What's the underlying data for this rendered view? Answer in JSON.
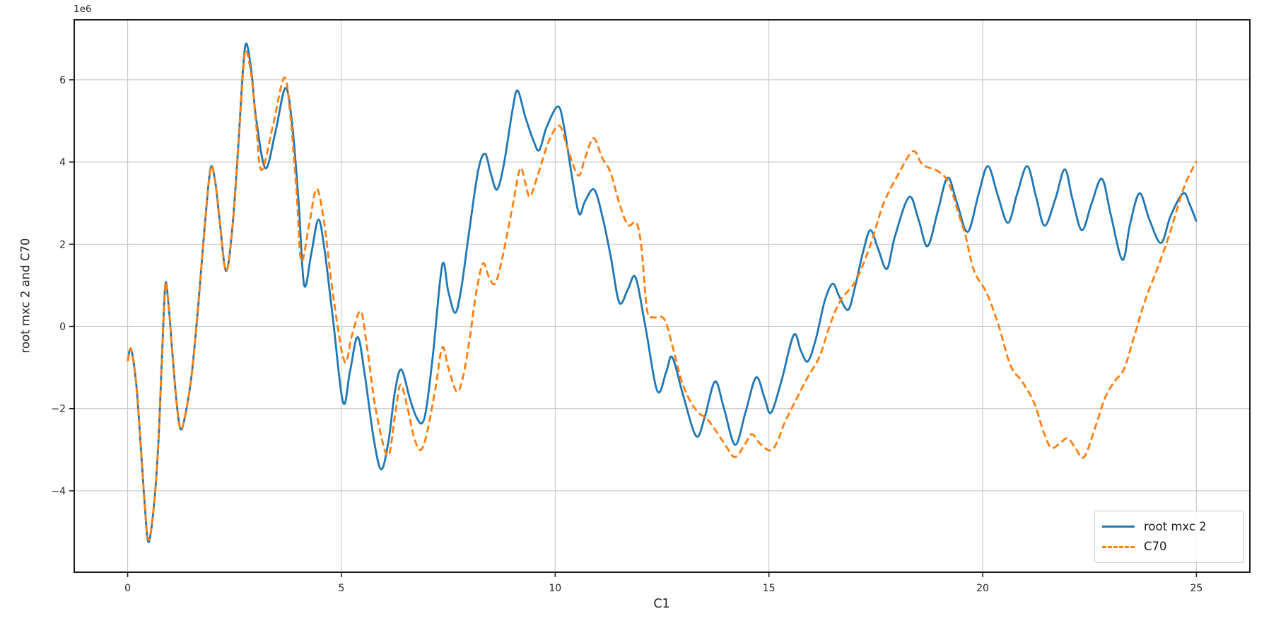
{
  "chart_data": {
    "type": "line",
    "xlabel": "C1",
    "ylabel": "root mxc 2 and C70",
    "y_offset_label": "1e6",
    "y_unit_multiplier": 1000000,
    "xlim": [
      -1.25,
      26.25
    ],
    "ylim": [
      -5.98,
      7.46
    ],
    "xticks": [
      0,
      5,
      10,
      15,
      20,
      25
    ],
    "xtick_labels": [
      "0",
      "5",
      "10",
      "15",
      "20",
      "25"
    ],
    "yticks": [
      -4,
      -2,
      0,
      2,
      4,
      6
    ],
    "ytick_labels": [
      "−4",
      "−2",
      "0",
      "2",
      "4",
      "6"
    ],
    "grid": true,
    "legend_position": "lower right",
    "series": [
      {
        "name": "root mxc 2",
        "color": "#1f77b4",
        "style": "solid",
        "points": [
          [
            0,
            -0.85
          ],
          [
            0.08,
            -0.55
          ],
          [
            0.2,
            -1.4
          ],
          [
            0.3,
            -2.8
          ],
          [
            0.4,
            -4.35
          ],
          [
            0.49,
            -5.25
          ],
          [
            0.62,
            -4.3
          ],
          [
            0.72,
            -2.8
          ],
          [
            0.8,
            -0.8
          ],
          [
            0.88,
            1.0
          ],
          [
            0.95,
            0.6
          ],
          [
            1.05,
            -0.7
          ],
          [
            1.15,
            -1.9
          ],
          [
            1.24,
            -2.5
          ],
          [
            1.35,
            -2.15
          ],
          [
            1.5,
            -1.15
          ],
          [
            1.65,
            0.5
          ],
          [
            1.8,
            2.4
          ],
          [
            1.94,
            3.85
          ],
          [
            2.05,
            3.5
          ],
          [
            2.15,
            2.6
          ],
          [
            2.3,
            1.35
          ],
          [
            2.45,
            2.4
          ],
          [
            2.6,
            4.6
          ],
          [
            2.7,
            6.3
          ],
          [
            2.78,
            6.88
          ],
          [
            2.9,
            6.15
          ],
          [
            3.0,
            5.1
          ],
          [
            3.22,
            3.85
          ],
          [
            3.45,
            4.7
          ],
          [
            3.69,
            5.8
          ],
          [
            3.85,
            4.9
          ],
          [
            4.0,
            3.0
          ],
          [
            4.13,
            1.0
          ],
          [
            4.3,
            1.8
          ],
          [
            4.46,
            2.6
          ],
          [
            4.6,
            1.9
          ],
          [
            4.8,
            0.2
          ],
          [
            5.04,
            -1.85
          ],
          [
            5.2,
            -1.1
          ],
          [
            5.38,
            -0.26
          ],
          [
            5.55,
            -1.2
          ],
          [
            5.75,
            -2.7
          ],
          [
            5.93,
            -3.48
          ],
          [
            6.1,
            -2.8
          ],
          [
            6.25,
            -1.6
          ],
          [
            6.4,
            -1.05
          ],
          [
            6.6,
            -1.75
          ],
          [
            6.75,
            -2.2
          ],
          [
            6.89,
            -2.35
          ],
          [
            7.0,
            -1.9
          ],
          [
            7.15,
            -0.6
          ],
          [
            7.36,
            1.5
          ],
          [
            7.5,
            0.85
          ],
          [
            7.66,
            0.33
          ],
          [
            7.8,
            0.9
          ],
          [
            8.0,
            2.4
          ],
          [
            8.2,
            3.8
          ],
          [
            8.36,
            4.2
          ],
          [
            8.5,
            3.7
          ],
          [
            8.64,
            3.33
          ],
          [
            8.8,
            3.95
          ],
          [
            9.0,
            5.25
          ],
          [
            9.12,
            5.74
          ],
          [
            9.3,
            5.1
          ],
          [
            9.5,
            4.5
          ],
          [
            9.63,
            4.29
          ],
          [
            9.8,
            4.85
          ],
          [
            10.06,
            5.35
          ],
          [
            10.2,
            4.9
          ],
          [
            10.4,
            3.6
          ],
          [
            10.56,
            2.74
          ],
          [
            10.7,
            3.05
          ],
          [
            10.91,
            3.33
          ],
          [
            11.1,
            2.7
          ],
          [
            11.3,
            1.7
          ],
          [
            11.5,
            0.58
          ],
          [
            11.7,
            0.9
          ],
          [
            11.88,
            1.19
          ],
          [
            12.11,
            0.0
          ],
          [
            12.39,
            -1.57
          ],
          [
            12.6,
            -1.1
          ],
          [
            12.74,
            -0.75
          ],
          [
            13.0,
            -1.7
          ],
          [
            13.3,
            -2.67
          ],
          [
            13.5,
            -2.2
          ],
          [
            13.74,
            -1.34
          ],
          [
            13.95,
            -2.0
          ],
          [
            14.21,
            -2.88
          ],
          [
            14.45,
            -2.1
          ],
          [
            14.7,
            -1.24
          ],
          [
            14.9,
            -1.75
          ],
          [
            15.05,
            -2.1
          ],
          [
            15.3,
            -1.3
          ],
          [
            15.58,
            -0.21
          ],
          [
            15.75,
            -0.6
          ],
          [
            15.91,
            -0.85
          ],
          [
            16.1,
            -0.3
          ],
          [
            16.3,
            0.6
          ],
          [
            16.49,
            1.04
          ],
          [
            16.65,
            0.72
          ],
          [
            16.85,
            0.4
          ],
          [
            17.0,
            0.9
          ],
          [
            17.2,
            1.8
          ],
          [
            17.37,
            2.34
          ],
          [
            17.55,
            1.9
          ],
          [
            17.76,
            1.4
          ],
          [
            17.95,
            2.2
          ],
          [
            18.28,
            3.15
          ],
          [
            18.5,
            2.6
          ],
          [
            18.71,
            1.95
          ],
          [
            18.95,
            2.8
          ],
          [
            19.18,
            3.62
          ],
          [
            19.4,
            3.0
          ],
          [
            19.65,
            2.3
          ],
          [
            19.9,
            3.2
          ],
          [
            20.12,
            3.9
          ],
          [
            20.35,
            3.2
          ],
          [
            20.59,
            2.52
          ],
          [
            20.8,
            3.2
          ],
          [
            21.04,
            3.9
          ],
          [
            21.25,
            3.15
          ],
          [
            21.45,
            2.45
          ],
          [
            21.7,
            3.1
          ],
          [
            21.92,
            3.82
          ],
          [
            22.1,
            3.1
          ],
          [
            22.32,
            2.34
          ],
          [
            22.55,
            3.0
          ],
          [
            22.79,
            3.59
          ],
          [
            23.0,
            2.7
          ],
          [
            23.27,
            1.62
          ],
          [
            23.45,
            2.5
          ],
          [
            23.67,
            3.24
          ],
          [
            23.9,
            2.6
          ],
          [
            24.17,
            2.03
          ],
          [
            24.4,
            2.7
          ],
          [
            24.69,
            3.24
          ],
          [
            24.85,
            2.95
          ],
          [
            25.0,
            2.55
          ]
        ]
      },
      {
        "name": "C70",
        "color": "#ff7f0e",
        "style": "dashed",
        "points": [
          [
            0,
            -0.85
          ],
          [
            0.08,
            -0.55
          ],
          [
            0.2,
            -1.4
          ],
          [
            0.3,
            -2.8
          ],
          [
            0.4,
            -4.35
          ],
          [
            0.49,
            -5.2
          ],
          [
            0.62,
            -4.3
          ],
          [
            0.72,
            -2.8
          ],
          [
            0.8,
            -0.8
          ],
          [
            0.88,
            1.0
          ],
          [
            0.95,
            0.6
          ],
          [
            1.05,
            -0.7
          ],
          [
            1.15,
            -1.9
          ],
          [
            1.24,
            -2.5
          ],
          [
            1.35,
            -2.15
          ],
          [
            1.5,
            -1.15
          ],
          [
            1.65,
            0.5
          ],
          [
            1.8,
            2.4
          ],
          [
            1.94,
            3.85
          ],
          [
            2.05,
            3.5
          ],
          [
            2.15,
            2.6
          ],
          [
            2.3,
            1.35
          ],
          [
            2.45,
            2.4
          ],
          [
            2.6,
            4.55
          ],
          [
            2.7,
            6.2
          ],
          [
            2.77,
            6.72
          ],
          [
            2.9,
            6.05
          ],
          [
            3.0,
            5.0
          ],
          [
            3.13,
            3.8
          ],
          [
            3.4,
            4.9
          ],
          [
            3.66,
            6.05
          ],
          [
            3.8,
            5.2
          ],
          [
            3.95,
            3.3
          ],
          [
            4.06,
            1.6
          ],
          [
            4.25,
            2.5
          ],
          [
            4.42,
            3.35
          ],
          [
            4.6,
            2.5
          ],
          [
            4.8,
            0.8
          ],
          [
            5.07,
            -0.85
          ],
          [
            5.25,
            -0.2
          ],
          [
            5.45,
            0.37
          ],
          [
            5.6,
            -0.5
          ],
          [
            5.8,
            -2.0
          ],
          [
            6.08,
            -3.15
          ],
          [
            6.25,
            -2.2
          ],
          [
            6.38,
            -1.42
          ],
          [
            6.55,
            -2.0
          ],
          [
            6.7,
            -2.7
          ],
          [
            6.85,
            -3.01
          ],
          [
            7.0,
            -2.6
          ],
          [
            7.2,
            -1.5
          ],
          [
            7.36,
            -0.51
          ],
          [
            7.5,
            -1.0
          ],
          [
            7.7,
            -1.59
          ],
          [
            7.85,
            -1.2
          ],
          [
            8.0,
            -0.3
          ],
          [
            8.15,
            0.8
          ],
          [
            8.31,
            1.53
          ],
          [
            8.45,
            1.2
          ],
          [
            8.59,
            1.04
          ],
          [
            8.75,
            1.6
          ],
          [
            9.0,
            2.9
          ],
          [
            9.18,
            3.84
          ],
          [
            9.3,
            3.5
          ],
          [
            9.41,
            3.16
          ],
          [
            9.6,
            3.7
          ],
          [
            9.85,
            4.5
          ],
          [
            10.1,
            4.88
          ],
          [
            10.3,
            4.3
          ],
          [
            10.54,
            3.67
          ],
          [
            10.7,
            4.1
          ],
          [
            10.9,
            4.58
          ],
          [
            11.1,
            4.1
          ],
          [
            11.29,
            3.76
          ],
          [
            11.5,
            3.0
          ],
          [
            11.7,
            2.47
          ],
          [
            11.9,
            2.52
          ],
          [
            12.02,
            1.9
          ],
          [
            12.15,
            0.4
          ],
          [
            12.3,
            0.22
          ],
          [
            12.55,
            0.18
          ],
          [
            12.75,
            -0.5
          ],
          [
            12.95,
            -1.3
          ],
          [
            13.15,
            -1.8
          ],
          [
            13.35,
            -2.1
          ],
          [
            13.55,
            -2.25
          ],
          [
            13.8,
            -2.6
          ],
          [
            14.0,
            -2.92
          ],
          [
            14.21,
            -3.18
          ],
          [
            14.45,
            -2.85
          ],
          [
            14.6,
            -2.62
          ],
          [
            14.79,
            -2.85
          ],
          [
            15.03,
            -3.02
          ],
          [
            15.2,
            -2.8
          ],
          [
            15.36,
            -2.36
          ],
          [
            15.69,
            -1.67
          ],
          [
            15.9,
            -1.25
          ],
          [
            16.19,
            -0.72
          ],
          [
            16.45,
            0.1
          ],
          [
            16.69,
            0.66
          ],
          [
            17.02,
            1.09
          ],
          [
            17.35,
            1.91
          ],
          [
            17.68,
            2.98
          ],
          [
            18.01,
            3.67
          ],
          [
            18.36,
            4.26
          ],
          [
            18.55,
            4.0
          ],
          [
            18.67,
            3.89
          ],
          [
            18.95,
            3.78
          ],
          [
            19.2,
            3.5
          ],
          [
            19.45,
            2.7
          ],
          [
            19.6,
            2.2
          ],
          [
            19.8,
            1.35
          ],
          [
            20.1,
            0.8
          ],
          [
            20.38,
            0.0
          ],
          [
            20.65,
            -0.95
          ],
          [
            20.93,
            -1.35
          ],
          [
            21.2,
            -1.85
          ],
          [
            21.42,
            -2.55
          ],
          [
            21.6,
            -2.95
          ],
          [
            21.8,
            -2.85
          ],
          [
            21.98,
            -2.72
          ],
          [
            22.15,
            -2.92
          ],
          [
            22.37,
            -3.18
          ],
          [
            22.65,
            -2.4
          ],
          [
            22.87,
            -1.72
          ],
          [
            23.09,
            -1.33
          ],
          [
            23.31,
            -1.03
          ],
          [
            23.53,
            -0.29
          ],
          [
            23.81,
            0.66
          ],
          [
            24.08,
            1.39
          ],
          [
            24.36,
            2.21
          ],
          [
            24.69,
            3.33
          ],
          [
            24.91,
            3.84
          ],
          [
            25.0,
            4.02
          ]
        ]
      }
    ]
  },
  "colors": {
    "background": "#ffffff",
    "grid": "#c9c9c9",
    "spine": "#1a1a1a",
    "tick_text": "#262626",
    "legend_border": "#cccccc"
  }
}
